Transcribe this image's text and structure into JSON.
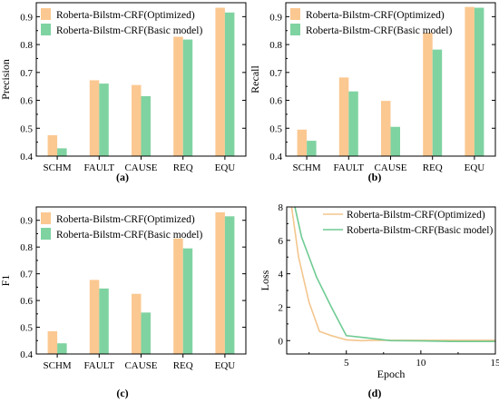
{
  "colors": {
    "optimized": "#FBC891",
    "basic": "#7FD3A1",
    "optimized_line": "#F3C68E",
    "basic_line": "#6FCB92"
  },
  "chart_data": [
    {
      "type": "bar",
      "panel_label": "(a)",
      "ylabel": "Precision",
      "xlabel": "",
      "categories": [
        "SCHM",
        "FAULT",
        "CAUSE",
        "REQ",
        "EQU"
      ],
      "ylim": [
        0.4,
        0.95
      ],
      "yticks": [
        "0.4",
        "0.5",
        "0.6",
        "0.7",
        "0.8",
        "0.9"
      ],
      "legend_position": "top-left",
      "series": [
        {
          "name": "Roberta-Bilstm-CRF(Optimized)",
          "values": [
            0.475,
            0.672,
            0.655,
            0.828,
            0.932
          ]
        },
        {
          "name": "Roberta-Bilstm-CRF(Basic model)",
          "values": [
            0.428,
            0.66,
            0.615,
            0.818,
            0.915
          ]
        }
      ]
    },
    {
      "type": "bar",
      "panel_label": "(b)",
      "ylabel": "Recall",
      "xlabel": "",
      "categories": [
        "SCHM",
        "FAULT",
        "CAUSE",
        "REQ",
        "EQU"
      ],
      "ylim": [
        0.4,
        0.95
      ],
      "yticks": [
        "0.4",
        "0.5",
        "0.6",
        "0.7",
        "0.8",
        "0.9"
      ],
      "legend_position": "top-left",
      "series": [
        {
          "name": "Roberta-Bilstm-CRF(Optimized)",
          "values": [
            0.495,
            0.682,
            0.598,
            0.842,
            0.935
          ]
        },
        {
          "name": "Roberta-Bilstm-CRF(Basic model)",
          "values": [
            0.455,
            0.632,
            0.505,
            0.782,
            0.932
          ]
        }
      ]
    },
    {
      "type": "bar",
      "panel_label": "(c)",
      "ylabel": "F1",
      "xlabel": "",
      "categories": [
        "SCHM",
        "FAULT",
        "CAUSE",
        "REQ",
        "EQU"
      ],
      "ylim": [
        0.4,
        0.95
      ],
      "yticks": [
        "0.4",
        "0.5",
        "0.6",
        "0.7",
        "0.8",
        "0.9"
      ],
      "legend_position": "top-left",
      "series": [
        {
          "name": "Roberta-Bilstm-CRF(Optimized)",
          "values": [
            0.485,
            0.677,
            0.625,
            0.832,
            0.93
          ]
        },
        {
          "name": "Roberta-Bilstm-CRF(Basic model)",
          "values": [
            0.44,
            0.645,
            0.555,
            0.795,
            0.915
          ]
        }
      ]
    },
    {
      "type": "line",
      "panel_label": "(d)",
      "ylabel": "Loss",
      "xlabel": "Epoch",
      "xlim": [
        1,
        15
      ],
      "ylim": [
        -0.8,
        8
      ],
      "xticks": [
        "5",
        "10",
        "15"
      ],
      "yticks": [
        "0",
        "2",
        "4",
        "6",
        "8"
      ],
      "legend_position": "top-right",
      "series": [
        {
          "name": "Roberta-Bilstm-CRF(Optimized)",
          "x": [
            1.3,
            1.8,
            2.5,
            3.2,
            4,
            5,
            6,
            7,
            8,
            10,
            12,
            15
          ],
          "y": [
            8.2,
            5.0,
            2.3,
            0.55,
            0.3,
            0.05,
            0.0,
            0.02,
            0.02,
            0.02,
            0.02,
            0.02
          ]
        },
        {
          "name": "Roberta-Bilstm-CRF(Basic model)",
          "x": [
            1.5,
            2,
            3,
            4,
            5,
            6,
            7,
            8,
            10,
            12,
            15
          ],
          "y": [
            8.2,
            6.2,
            3.8,
            2.0,
            0.3,
            0.2,
            0.1,
            0.0,
            -0.02,
            -0.05,
            -0.05
          ]
        }
      ]
    }
  ]
}
